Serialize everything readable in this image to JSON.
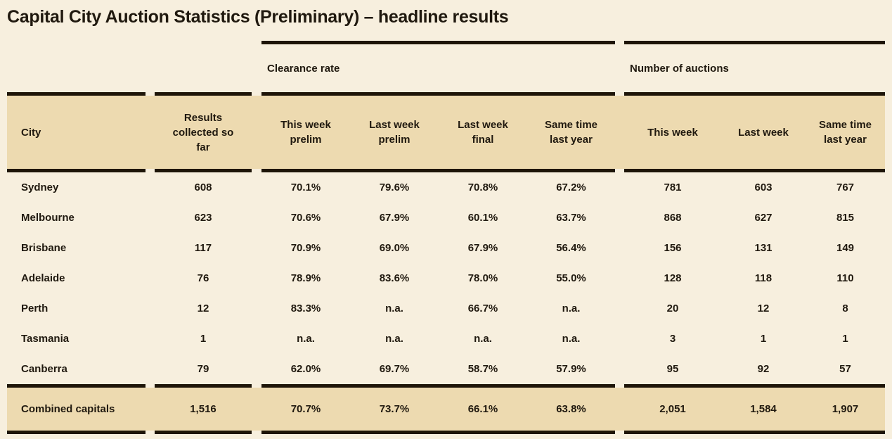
{
  "title": "Capital City Auction Statistics (Preliminary) – headline results",
  "colors": {
    "background": "#f7efde",
    "band": "#eddab0",
    "rule": "#1e1508",
    "text": "#20190f"
  },
  "chart_data": {
    "type": "table",
    "title": "Capital City Auction Statistics (Preliminary) – headline results",
    "group_headers": {
      "clearance": "Clearance rate",
      "auctions": "Number of auctions"
    },
    "columns": [
      "City",
      "Results collected so far",
      "This week prelim",
      "Last week prelim",
      "Last week final",
      "Same time last year",
      "This week",
      "Last week",
      "Same time last year"
    ],
    "rows": [
      {
        "city": "Sydney",
        "cells": [
          "608",
          "70.1%",
          "79.6%",
          "70.8%",
          "67.2%",
          "781",
          "603",
          "767"
        ]
      },
      {
        "city": "Melbourne",
        "cells": [
          "623",
          "70.6%",
          "67.9%",
          "60.1%",
          "63.7%",
          "868",
          "627",
          "815"
        ]
      },
      {
        "city": "Brisbane",
        "cells": [
          "117",
          "70.9%",
          "69.0%",
          "67.9%",
          "56.4%",
          "156",
          "131",
          "149"
        ]
      },
      {
        "city": "Adelaide",
        "cells": [
          "76",
          "78.9%",
          "83.6%",
          "78.0%",
          "55.0%",
          "128",
          "118",
          "110"
        ]
      },
      {
        "city": "Perth",
        "cells": [
          "12",
          "83.3%",
          "n.a.",
          "66.7%",
          "n.a.",
          "20",
          "12",
          "8"
        ]
      },
      {
        "city": "Tasmania",
        "cells": [
          "1",
          "n.a.",
          "n.a.",
          "n.a.",
          "n.a.",
          "3",
          "1",
          "1"
        ]
      },
      {
        "city": "Canberra",
        "cells": [
          "79",
          "62.0%",
          "69.7%",
          "58.7%",
          "57.9%",
          "95",
          "92",
          "57"
        ]
      }
    ],
    "total_row": {
      "city": "Combined capitals",
      "cells": [
        "1,516",
        "70.7%",
        "73.7%",
        "66.1%",
        "63.8%",
        "2,051",
        "1,584",
        "1,907"
      ]
    }
  }
}
